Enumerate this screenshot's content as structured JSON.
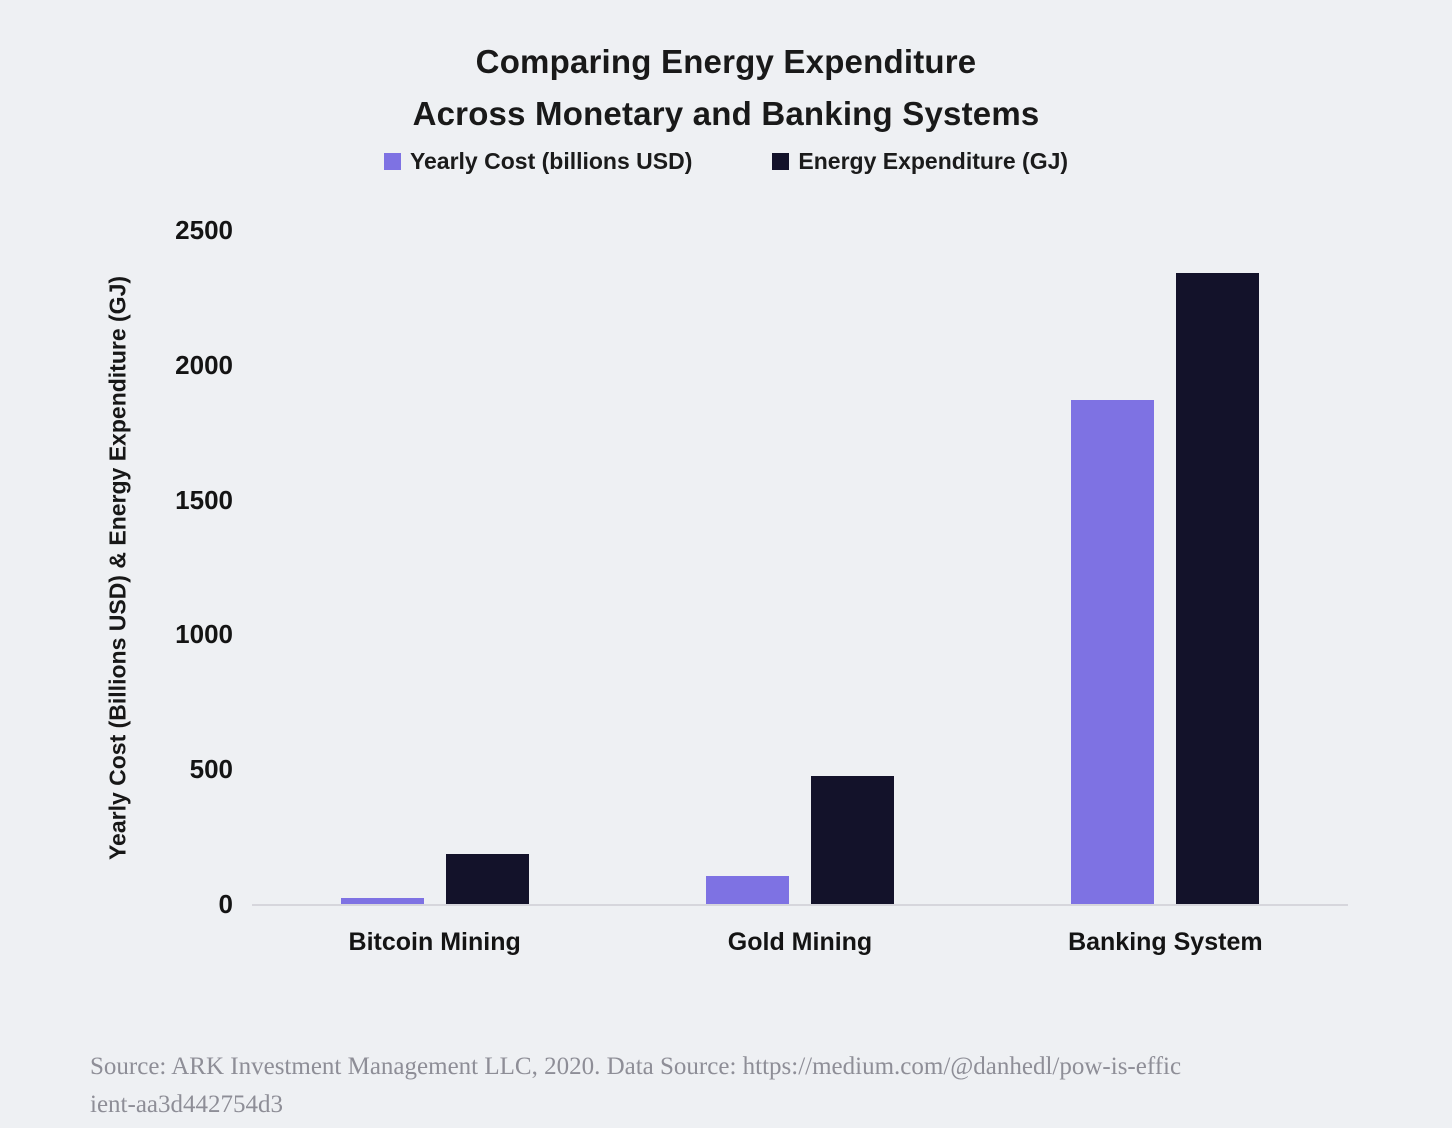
{
  "page": {
    "background": "#eef0f3"
  },
  "title": {
    "line1": "Comparing Energy Expenditure",
    "line2": "Across Monetary and Banking Systems"
  },
  "legend": {
    "items": [
      {
        "label": "Yearly Cost (billions USD)",
        "color": "#7e72e3"
      },
      {
        "label": "Energy Expenditure (GJ)",
        "color": "#13122a"
      }
    ]
  },
  "source": {
    "lines": [
      "Source: ARK Investment Management LLC, 2020. Data Source: https://medium.com/@danhedl/pow-is-effic",
      "ient-aa3d442754d3"
    ]
  },
  "chart_data": {
    "type": "bar",
    "title": "Comparing Energy Expenditure Across Monetary and Banking Systems",
    "categories": [
      "Bitcoin Mining",
      "Gold Mining",
      "Banking System"
    ],
    "series": [
      {
        "name": "Yearly Cost (billions USD)",
        "color": "#7e72e3",
        "values": [
          5,
          105,
          1870
        ]
      },
      {
        "name": "Energy Expenditure (GJ)",
        "color": "#13122a",
        "values": [
          184,
          475,
          2340
        ]
      }
    ],
    "xlabel": "",
    "ylabel": "Yearly Cost (Billions USD) & Energy Expenditure (GJ)",
    "ylim": [
      0,
      2500
    ],
    "yticks": [
      0,
      500,
      1000,
      1500,
      2000,
      2500
    ],
    "grid": false,
    "legend_position": "top",
    "colors": {
      "background": "#eef0f3",
      "axis_line": "#d6d6dc",
      "text": "#1a1a1a",
      "source_text": "#8e8e97"
    }
  }
}
